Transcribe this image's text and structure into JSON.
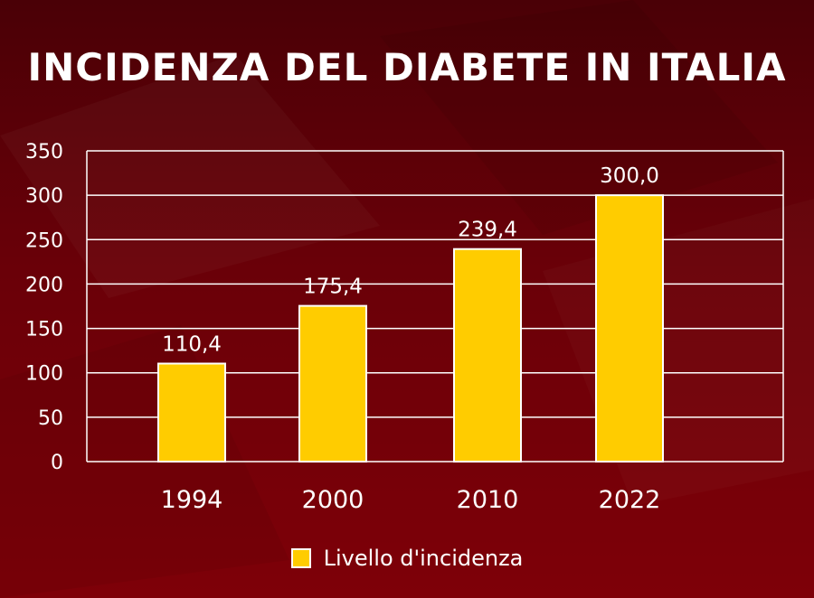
{
  "chart_data": {
    "type": "bar",
    "title": "INCIDENZA DEL DIABETE IN ITALIA",
    "categories": [
      "1994",
      "2000",
      "2010",
      "2022"
    ],
    "series": [
      {
        "name": "Livello d'incidenza",
        "values": [
          110.4,
          175.4,
          239.4,
          300.0
        ],
        "labels": [
          "110,4",
          "175,4",
          "239,4",
          "300,0"
        ]
      }
    ],
    "ylim": [
      0,
      350
    ],
    "yticks": [
      0,
      50,
      100,
      150,
      200,
      250,
      300,
      350
    ],
    "grid": true,
    "legend_position": "bottom-center",
    "colors": {
      "bar": "#ffcc00",
      "bar_border": "#ffffff",
      "text": "#ffffff"
    }
  }
}
